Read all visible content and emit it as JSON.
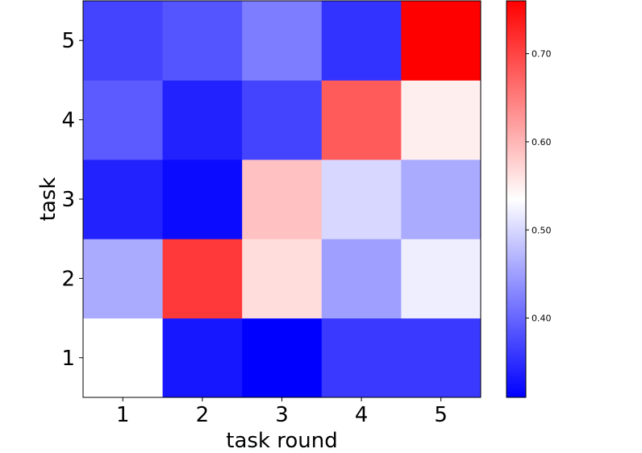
{
  "chart_data": {
    "type": "heatmap",
    "title": "",
    "xlabel": "task round",
    "ylabel": "task",
    "x_ticks": [
      "1",
      "2",
      "3",
      "4",
      "5"
    ],
    "y_ticks": [
      "1",
      "2",
      "3",
      "4",
      "5"
    ],
    "colormap": "bwr",
    "vmin": 0.31,
    "vmax": 0.76,
    "colorbar_ticks": [
      "0.40",
      "0.50",
      "0.60",
      "0.70"
    ],
    "colorbar_tick_values": [
      0.4,
      0.5,
      0.6,
      0.7
    ],
    "values": [
      [
        0.535,
        0.33,
        0.31,
        0.36,
        0.36
      ],
      [
        0.46,
        0.71,
        0.565,
        0.45,
        0.52
      ],
      [
        0.34,
        0.32,
        0.59,
        0.5,
        0.46
      ],
      [
        0.39,
        0.34,
        0.37,
        0.68,
        0.55
      ],
      [
        0.37,
        0.385,
        0.42,
        0.355,
        0.76
      ]
    ]
  }
}
